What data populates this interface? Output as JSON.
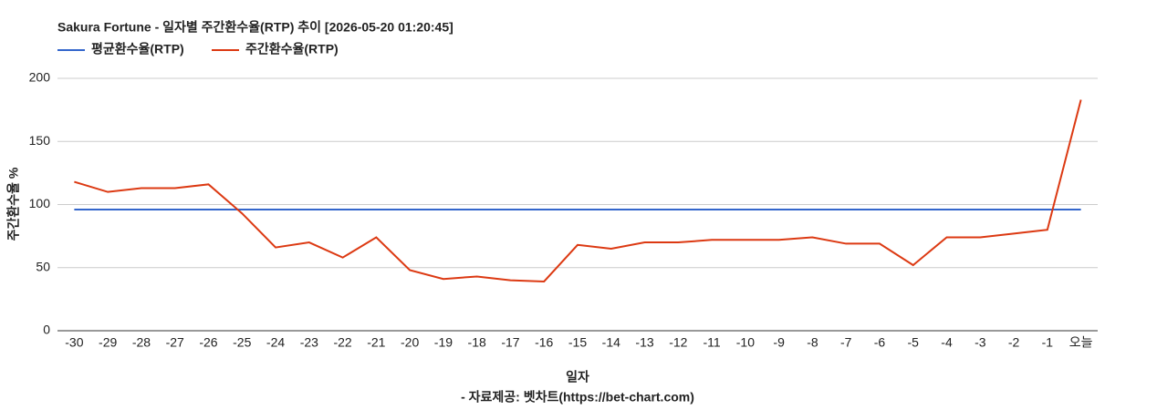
{
  "chart_data": {
    "type": "line",
    "title": "Sakura Fortune - 일자별 주간환수율(RTP) 추이 [2026-05-20 01:20:45]",
    "x_label": "일자",
    "y_label": "주간환수율 %",
    "source": "- 자료제공: 벳차트(https://bet-chart.com)",
    "categories": [
      "-30",
      "-29",
      "-28",
      "-27",
      "-26",
      "-25",
      "-24",
      "-23",
      "-22",
      "-21",
      "-20",
      "-19",
      "-18",
      "-17",
      "-16",
      "-15",
      "-14",
      "-13",
      "-12",
      "-11",
      "-10",
      "-9",
      "-8",
      "-7",
      "-6",
      "-5",
      "-4",
      "-3",
      "-2",
      "-1",
      "오늘"
    ],
    "series": [
      {
        "name": "평균환수율(RTP)",
        "color": "#3366cc",
        "values": [
          96,
          96,
          96,
          96,
          96,
          96,
          96,
          96,
          96,
          96,
          96,
          96,
          96,
          96,
          96,
          96,
          96,
          96,
          96,
          96,
          96,
          96,
          96,
          96,
          96,
          96,
          96,
          96,
          96,
          96,
          96
        ]
      },
      {
        "name": "주간환수율(RTP)",
        "color": "#dc3912",
        "values": [
          118,
          110,
          113,
          113,
          116,
          93,
          66,
          70,
          58,
          74,
          48,
          41,
          43,
          40,
          39,
          68,
          65,
          70,
          70,
          72,
          72,
          72,
          74,
          69,
          69,
          52,
          74,
          74,
          77,
          80,
          183
        ]
      }
    ],
    "ylim": [
      0,
      200
    ],
    "yticks": [
      0,
      50,
      100,
      150,
      200
    ],
    "grid": true
  }
}
